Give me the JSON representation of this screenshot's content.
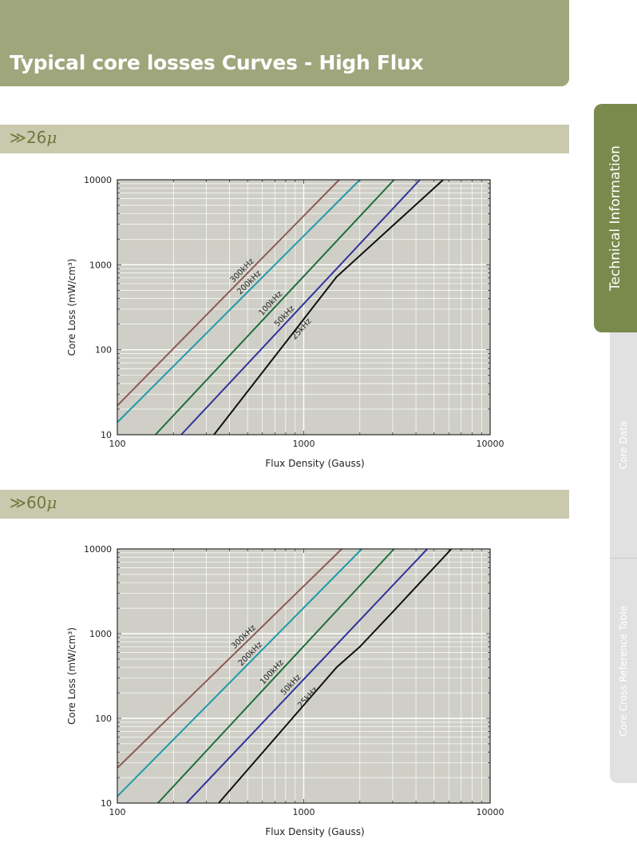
{
  "page": {
    "title": "Typical core losses Curves - High Flux"
  },
  "side_tabs": [
    {
      "label": "Technical Information",
      "active": true
    },
    {
      "label": "Core Data",
      "active": false
    },
    {
      "label": "Core Cross Reference Table",
      "active": false
    }
  ],
  "sections": [
    {
      "label_prefix": "≫26",
      "mu": "μ"
    },
    {
      "label_prefix": "≫60",
      "mu": "μ"
    }
  ],
  "chart_data": [
    {
      "type": "line",
      "xscale": "log",
      "yscale": "log",
      "xlim": [
        100,
        10000
      ],
      "ylim": [
        10,
        10000
      ],
      "x_ticks": [
        "100",
        "1000",
        "10000"
      ],
      "y_ticks": [
        "10",
        "100",
        "1000",
        "10000"
      ],
      "xlabel": "Flux Density (Gauss)",
      "ylabel": "Core Loss (mW/cm³)",
      "grid": true,
      "series": [
        {
          "name": "300kHz",
          "color": "#8c5a55",
          "points": [
            [
              100,
              22
            ],
            [
              1550,
              10000
            ]
          ]
        },
        {
          "name": "200kHz",
          "color": "#1f9aaa",
          "points": [
            [
              100,
              14
            ],
            [
              2000,
              10000
            ]
          ]
        },
        {
          "name": "100kHz",
          "color": "#1f6e3c",
          "points": [
            [
              160,
              10
            ],
            [
              3050,
              10000
            ]
          ]
        },
        {
          "name": "50kHz",
          "color": "#30349a",
          "points": [
            [
              220,
              10
            ],
            [
              4200,
              10000
            ]
          ]
        },
        {
          "name": "25kHz",
          "color": "#111111",
          "points": [
            [
              330,
              10
            ],
            [
              1500,
              720
            ],
            [
              5600,
              10000
            ]
          ]
        }
      ]
    },
    {
      "type": "line",
      "xscale": "log",
      "yscale": "log",
      "xlim": [
        100,
        10000
      ],
      "ylim": [
        10,
        10000
      ],
      "x_ticks": [
        "100",
        "1000",
        "10000"
      ],
      "y_ticks": [
        "10",
        "100",
        "1000",
        "10000"
      ],
      "xlabel": "Flux Density (Gauss)",
      "ylabel": "Core Loss (mW/cm³)",
      "grid": true,
      "series": [
        {
          "name": "300kHz",
          "color": "#8c5a55",
          "points": [
            [
              100,
              26
            ],
            [
              1600,
              10000
            ]
          ]
        },
        {
          "name": "200kHz",
          "color": "#1f9aaa",
          "points": [
            [
              100,
              12
            ],
            [
              2050,
              10000
            ]
          ]
        },
        {
          "name": "100kHz",
          "color": "#1f6e3c",
          "points": [
            [
              165,
              10
            ],
            [
              3050,
              10000
            ]
          ]
        },
        {
          "name": "50kHz",
          "color": "#30349a",
          "points": [
            [
              235,
              10
            ],
            [
              4600,
              10000
            ]
          ]
        },
        {
          "name": "25kHz",
          "color": "#111111",
          "points": [
            [
              350,
              10
            ],
            [
              1500,
              400
            ],
            [
              2000,
              700
            ],
            [
              3000,
              1800
            ],
            [
              6200,
              10000
            ]
          ]
        }
      ]
    }
  ]
}
